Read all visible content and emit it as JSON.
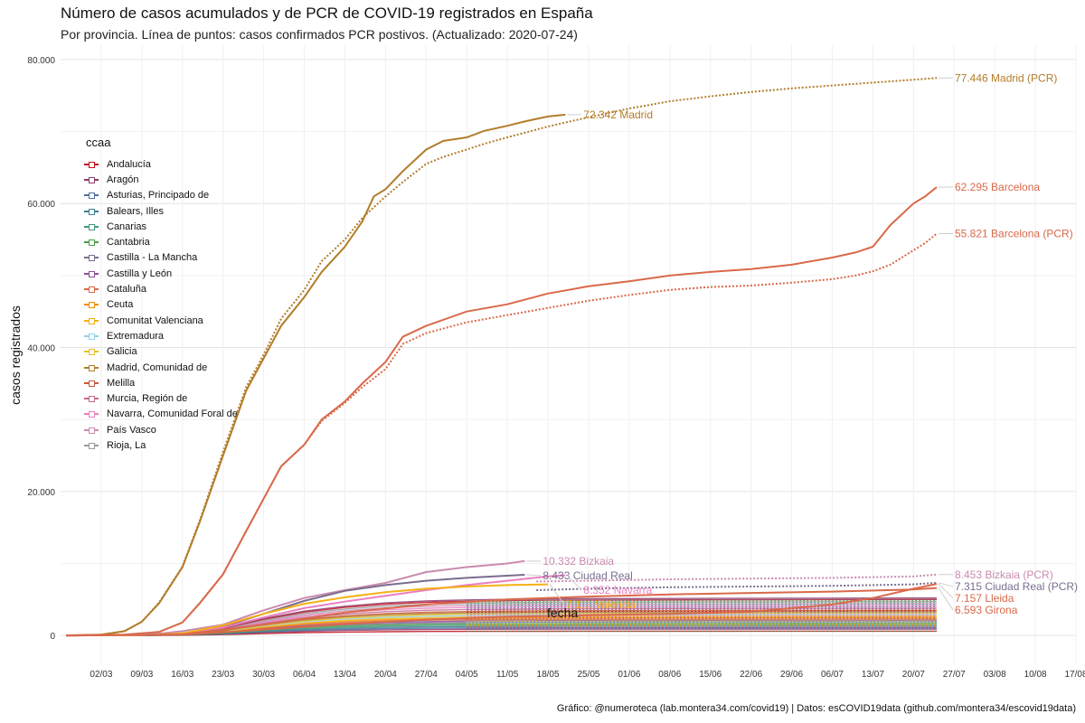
{
  "header": {
    "title": "Número de casos acumulados y de PCR de COVID-19 registrados en España",
    "subtitle": "Por provincia. Línea de puntos: casos confirmados PCR postivos. (Actualizado: 2020-07-24)"
  },
  "caption": "Gráfico: @numeroteca (lab.montera34.com/covid19) | Datos: esCOVID19data (github.com/montera34/escovid19data)",
  "chart_data": {
    "type": "line",
    "title": "Número de casos acumulados y de PCR de COVID-19 registrados en España",
    "subtitle": "Por provincia. Línea de puntos: casos confirmados PCR postivos. (Actualizado: 2020-07-24)",
    "xlabel": "fecha",
    "ylabel": "casos registrados",
    "x_type": "date",
    "xlim": [
      "2020-02-24",
      "2020-08-17"
    ],
    "ylim": [
      -4000,
      82000
    ],
    "grid": true,
    "x_ticks": [
      {
        "date": "2020-03-02",
        "label": "02/03"
      },
      {
        "date": "2020-03-09",
        "label": "09/03"
      },
      {
        "date": "2020-03-16",
        "label": "16/03"
      },
      {
        "date": "2020-03-23",
        "label": "23/03"
      },
      {
        "date": "2020-03-30",
        "label": "30/03"
      },
      {
        "date": "2020-04-06",
        "label": "06/04"
      },
      {
        "date": "2020-04-13",
        "label": "13/04"
      },
      {
        "date": "2020-04-20",
        "label": "20/04"
      },
      {
        "date": "2020-04-27",
        "label": "27/04"
      },
      {
        "date": "2020-05-04",
        "label": "04/05"
      },
      {
        "date": "2020-05-11",
        "label": "11/05"
      },
      {
        "date": "2020-05-18",
        "label": "18/05"
      },
      {
        "date": "2020-05-25",
        "label": "25/05"
      },
      {
        "date": "2020-06-01",
        "label": "01/06"
      },
      {
        "date": "2020-06-08",
        "label": "08/06"
      },
      {
        "date": "2020-06-15",
        "label": "15/06"
      },
      {
        "date": "2020-06-22",
        "label": "22/06"
      },
      {
        "date": "2020-06-29",
        "label": "29/06"
      },
      {
        "date": "2020-07-06",
        "label": "06/07"
      },
      {
        "date": "2020-07-13",
        "label": "13/07"
      },
      {
        "date": "2020-07-20",
        "label": "20/07"
      },
      {
        "date": "2020-07-27",
        "label": "27/07"
      },
      {
        "date": "2020-08-03",
        "label": "03/08"
      },
      {
        "date": "2020-08-10",
        "label": "10/08"
      },
      {
        "date": "2020-08-17",
        "label": "17/08"
      }
    ],
    "y_ticks": [
      {
        "value": 0,
        "label": "0"
      },
      {
        "value": 20000,
        "label": "20.000"
      },
      {
        "value": 40000,
        "label": "40.000"
      },
      {
        "value": 60000,
        "label": "60.000"
      },
      {
        "value": 80000,
        "label": "80.000"
      }
    ],
    "legend": {
      "title": "ccaa",
      "placement": "left inside plot",
      "items": [
        {
          "label": "Andalucía",
          "color": "#c1121f"
        },
        {
          "label": "Aragón",
          "color": "#8e3b6b"
        },
        {
          "label": "Asturias, Principado de",
          "color": "#4e6ea3"
        },
        {
          "label": "Balears, Illes",
          "color": "#3e7f8f"
        },
        {
          "label": "Canarias",
          "color": "#3f9b7a"
        },
        {
          "label": "Cantabria",
          "color": "#4d9a4a"
        },
        {
          "label": "Castilla - La Mancha",
          "color": "#7a6d8f"
        },
        {
          "label": "Castilla y León",
          "color": "#8e4f9a"
        },
        {
          "label": "Cataluña",
          "color": "#d9694a"
        },
        {
          "label": "Ceuta",
          "color": "#f28c00"
        },
        {
          "label": "Comunitat Valenciana",
          "color": "#f5b114"
        },
        {
          "label": "Extremadura",
          "color": "#8fd2e8"
        },
        {
          "label": "Galicia",
          "color": "#e6c02a"
        },
        {
          "label": "Madrid, Comunidad de",
          "color": "#b27d2a"
        },
        {
          "label": "Melilla",
          "color": "#c45a3a"
        },
        {
          "label": "Murcia, Región de",
          "color": "#c46a8f"
        },
        {
          "label": "Navarra, Comunidad Foral de",
          "color": "#ea7fc0"
        },
        {
          "label": "País Vasco",
          "color": "#c98bb0"
        },
        {
          "label": "Rioja, La",
          "color": "#999999"
        }
      ]
    },
    "series": [
      {
        "name": "Madrid",
        "ccaa": "Madrid, Comunidad de",
        "kind": "casos",
        "style": "solid",
        "color": "#b27d2a",
        "x": [
          "2020-02-25",
          "2020-03-02",
          "2020-03-06",
          "2020-03-09",
          "2020-03-12",
          "2020-03-16",
          "2020-03-19",
          "2020-03-23",
          "2020-03-27",
          "2020-03-30",
          "2020-04-02",
          "2020-04-06",
          "2020-04-09",
          "2020-04-13",
          "2020-04-16",
          "2020-04-18",
          "2020-04-20",
          "2020-04-23",
          "2020-04-27",
          "2020-04-30",
          "2020-05-04",
          "2020-05-07",
          "2020-05-11",
          "2020-05-14",
          "2020-05-18",
          "2020-05-21"
        ],
        "y": [
          0,
          100,
          600,
          1900,
          4500,
          9500,
          15800,
          25000,
          34000,
          38500,
          43000,
          47000,
          50500,
          54000,
          57500,
          61000,
          62000,
          64500,
          67500,
          68700,
          69200,
          70100,
          70800,
          71400,
          72100,
          72342
        ]
      },
      {
        "name": "Madrid (PCR)",
        "ccaa": "Madrid, Comunidad de",
        "kind": "PCR",
        "style": "dotted",
        "color": "#b27d2a",
        "x": [
          "2020-02-25",
          "2020-03-02",
          "2020-03-06",
          "2020-03-09",
          "2020-03-12",
          "2020-03-16",
          "2020-03-19",
          "2020-03-23",
          "2020-03-27",
          "2020-03-30",
          "2020-04-02",
          "2020-04-06",
          "2020-04-09",
          "2020-04-13",
          "2020-04-16",
          "2020-04-20",
          "2020-04-23",
          "2020-04-27",
          "2020-04-30",
          "2020-05-04",
          "2020-05-07",
          "2020-05-11",
          "2020-05-18",
          "2020-05-25",
          "2020-06-01",
          "2020-06-08",
          "2020-06-15",
          "2020-06-22",
          "2020-06-29",
          "2020-07-06",
          "2020-07-13",
          "2020-07-20",
          "2020-07-24"
        ],
        "y": [
          0,
          100,
          600,
          1900,
          4600,
          9600,
          16000,
          25500,
          34500,
          39000,
          44000,
          48000,
          52000,
          55000,
          58000,
          61000,
          63000,
          65500,
          66500,
          67500,
          68300,
          69200,
          70700,
          72000,
          73200,
          74200,
          74900,
          75500,
          76000,
          76400,
          76800,
          77200,
          77446
        ]
      },
      {
        "name": "Barcelona",
        "ccaa": "Cataluña",
        "kind": "casos",
        "style": "solid",
        "color": "#d9694a",
        "x": [
          "2020-02-25",
          "2020-03-06",
          "2020-03-12",
          "2020-03-16",
          "2020-03-19",
          "2020-03-23",
          "2020-03-27",
          "2020-03-30",
          "2020-04-02",
          "2020-04-06",
          "2020-04-09",
          "2020-04-13",
          "2020-04-16",
          "2020-04-20",
          "2020-04-23",
          "2020-04-27",
          "2020-05-04",
          "2020-05-11",
          "2020-05-18",
          "2020-05-25",
          "2020-06-01",
          "2020-06-08",
          "2020-06-15",
          "2020-06-22",
          "2020-06-29",
          "2020-07-06",
          "2020-07-10",
          "2020-07-13",
          "2020-07-16",
          "2020-07-20",
          "2020-07-22",
          "2020-07-24"
        ],
        "y": [
          0,
          100,
          500,
          1800,
          4500,
          8500,
          14500,
          19000,
          23500,
          26500,
          30000,
          32500,
          35000,
          38000,
          41500,
          43000,
          45000,
          46000,
          47500,
          48500,
          49200,
          50000,
          50500,
          50900,
          51500,
          52500,
          53200,
          54000,
          57000,
          60000,
          61000,
          62295
        ]
      },
      {
        "name": "Barcelona (PCR)",
        "ccaa": "Cataluña",
        "kind": "PCR",
        "style": "dotted",
        "color": "#d9694a",
        "x": [
          "2020-02-25",
          "2020-03-06",
          "2020-03-12",
          "2020-03-16",
          "2020-03-19",
          "2020-03-23",
          "2020-03-27",
          "2020-03-30",
          "2020-04-02",
          "2020-04-06",
          "2020-04-09",
          "2020-04-13",
          "2020-04-16",
          "2020-04-20",
          "2020-04-23",
          "2020-04-27",
          "2020-05-04",
          "2020-05-11",
          "2020-05-18",
          "2020-05-25",
          "2020-06-01",
          "2020-06-08",
          "2020-06-15",
          "2020-06-22",
          "2020-06-29",
          "2020-07-06",
          "2020-07-10",
          "2020-07-13",
          "2020-07-16",
          "2020-07-20",
          "2020-07-22",
          "2020-07-24"
        ],
        "y": [
          0,
          100,
          500,
          1800,
          4500,
          8500,
          14500,
          19000,
          23500,
          26500,
          29800,
          32300,
          34500,
          37000,
          40500,
          42000,
          43500,
          44500,
          45500,
          46500,
          47300,
          48000,
          48400,
          48600,
          49000,
          49500,
          50000,
          50600,
          51500,
          53500,
          54500,
          55821
        ]
      },
      {
        "name": "Bizkaia",
        "ccaa": "País Vasco",
        "kind": "casos",
        "style": "solid",
        "color": "#c98bb0",
        "x": [
          "2020-02-25",
          "2020-03-06",
          "2020-03-12",
          "2020-03-16",
          "2020-03-23",
          "2020-03-30",
          "2020-04-06",
          "2020-04-13",
          "2020-04-20",
          "2020-04-27",
          "2020-05-04",
          "2020-05-11",
          "2020-05-14"
        ],
        "y": [
          0,
          50,
          250,
          600,
          1500,
          3500,
          5200,
          6300,
          7300,
          8800,
          9500,
          10000,
          10332
        ]
      },
      {
        "name": "Bizkaia (PCR)",
        "ccaa": "País Vasco",
        "kind": "PCR",
        "style": "dotted",
        "color": "#c98bb0",
        "x": [
          "2020-05-16",
          "2020-05-25",
          "2020-06-08",
          "2020-06-22",
          "2020-07-06",
          "2020-07-20",
          "2020-07-24"
        ],
        "y": [
          7500,
          7600,
          7800,
          7900,
          8000,
          8200,
          8453
        ]
      },
      {
        "name": "Ciudad Real",
        "ccaa": "Castilla - La Mancha",
        "kind": "casos",
        "style": "solid",
        "color": "#7a6d8f",
        "x": [
          "2020-02-25",
          "2020-03-09",
          "2020-03-16",
          "2020-03-23",
          "2020-03-30",
          "2020-04-06",
          "2020-04-13",
          "2020-04-20",
          "2020-04-27",
          "2020-05-04",
          "2020-05-11",
          "2020-05-14"
        ],
        "y": [
          0,
          50,
          300,
          1200,
          3000,
          4800,
          6200,
          7000,
          7600,
          8000,
          8300,
          8433
        ]
      },
      {
        "name": "Ciudad Real (PCR)",
        "ccaa": "Castilla - La Mancha",
        "kind": "PCR",
        "style": "dotted",
        "color": "#7a6d8f",
        "x": [
          "2020-05-16",
          "2020-05-25",
          "2020-06-08",
          "2020-06-22",
          "2020-07-06",
          "2020-07-20",
          "2020-07-24"
        ],
        "y": [
          6300,
          6500,
          6700,
          6800,
          6900,
          7100,
          7315
        ]
      },
      {
        "name": "Navarra",
        "ccaa": "Navarra, Comunidad Foral de",
        "kind": "casos",
        "style": "solid",
        "color": "#ea7fc0",
        "x": [
          "2020-02-25",
          "2020-03-09",
          "2020-03-16",
          "2020-03-23",
          "2020-03-30",
          "2020-04-06",
          "2020-04-13",
          "2020-04-20",
          "2020-04-27",
          "2020-05-04",
          "2020-05-11",
          "2020-05-18",
          "2020-05-21"
        ],
        "y": [
          0,
          50,
          300,
          1100,
          2500,
          3800,
          4700,
          5500,
          6300,
          7000,
          7600,
          8200,
          8352
        ]
      },
      {
        "name": "Valencia",
        "ccaa": "Comunitat Valenciana",
        "kind": "casos",
        "style": "solid",
        "color": "#f5b114",
        "x": [
          "2020-02-25",
          "2020-03-09",
          "2020-03-16",
          "2020-03-23",
          "2020-03-30",
          "2020-04-06",
          "2020-04-13",
          "2020-04-20",
          "2020-04-27",
          "2020-05-04",
          "2020-05-11",
          "2020-05-18"
        ],
        "y": [
          0,
          50,
          300,
          1400,
          3000,
          4400,
          5300,
          6000,
          6500,
          6800,
          7000,
          7100
        ]
      },
      {
        "name": "Lleida",
        "ccaa": "Cataluña",
        "kind": "casos",
        "style": "solid",
        "color": "#d9694a",
        "x": [
          "2020-02-25",
          "2020-03-16",
          "2020-03-30",
          "2020-04-13",
          "2020-04-27",
          "2020-05-11",
          "2020-05-25",
          "2020-06-08",
          "2020-06-22",
          "2020-07-06",
          "2020-07-13",
          "2020-07-20",
          "2020-07-24"
        ],
        "y": [
          0,
          100,
          800,
          1600,
          2200,
          2600,
          2800,
          3000,
          3300,
          4300,
          5200,
          6500,
          7157
        ]
      },
      {
        "name": "Girona",
        "ccaa": "Cataluña",
        "kind": "casos",
        "style": "solid",
        "color": "#d9694a",
        "x": [
          "2020-02-25",
          "2020-03-16",
          "2020-03-30",
          "2020-04-13",
          "2020-04-27",
          "2020-05-11",
          "2020-05-25",
          "2020-06-08",
          "2020-06-22",
          "2020-07-06",
          "2020-07-20",
          "2020-07-24"
        ],
        "y": [
          0,
          150,
          1500,
          3200,
          4300,
          5000,
          5400,
          5700,
          5900,
          6100,
          6400,
          6593
        ]
      }
    ],
    "annotations": [
      {
        "text": "77.446 Madrid  (PCR)",
        "x": "2020-07-24",
        "y": 77446,
        "color": "#b27d2a"
      },
      {
        "text": "72.342 Madrid",
        "x": "2020-05-21",
        "y": 72342,
        "color": "#b27d2a"
      },
      {
        "text": "62.295 Barcelona",
        "x": "2020-07-24",
        "y": 62295,
        "color": "#d9694a"
      },
      {
        "text": "55.821 Barcelona  (PCR)",
        "x": "2020-07-24",
        "y": 55821,
        "color": "#d9694a"
      },
      {
        "text": "10.332 Bizkaia",
        "x": "2020-05-14",
        "y": 10332,
        "color": "#c98bb0"
      },
      {
        "text": "8.433 Ciudad Real",
        "x": "2020-05-14",
        "y": 8433,
        "color": "#7a6d8f"
      },
      {
        "text": "8.352 Navarra",
        "x": "2020-05-21",
        "y": 8352,
        "color": "#ea7fc0"
      },
      {
        "text": "8.453 Bizkaia  (PCR)",
        "x": "2020-07-24",
        "y": 8453,
        "color": "#c98bb0"
      },
      {
        "text": "7.157 Lleida",
        "x": "2020-07-24",
        "y": 7157,
        "color": "#d9694a"
      },
      {
        "text": "7.315 Ciudad Real  (PCR)",
        "x": "2020-07-24",
        "y": 7315,
        "color": "#7a6d8f"
      },
      {
        "text": "6.593 Girona",
        "x": "2020-07-24",
        "y": 6593,
        "color": "#d9694a"
      },
      {
        "text": "7.1… Valencia",
        "x": "2020-05-18",
        "y": 7100,
        "color": "#f5b114"
      }
    ]
  }
}
